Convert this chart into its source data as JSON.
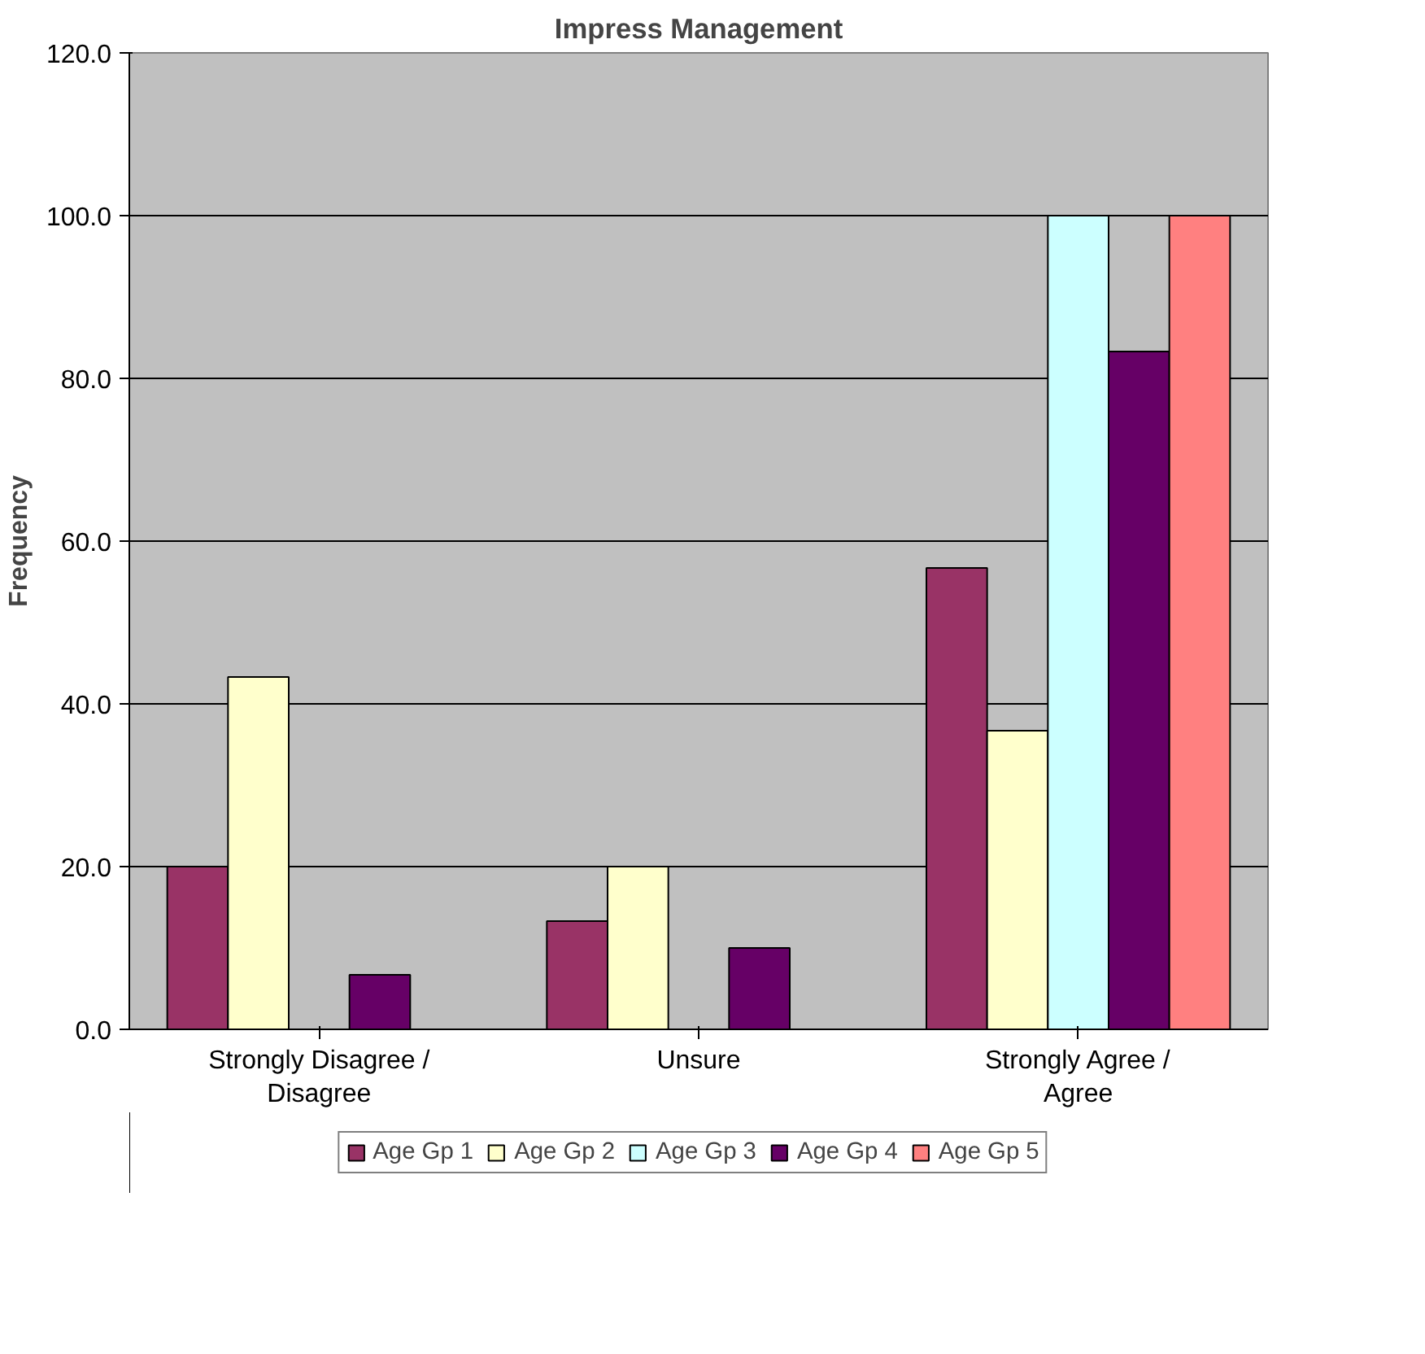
{
  "chart_data": {
    "type": "bar",
    "title": "Impress Management",
    "ylabel": "Frequency",
    "categories": [
      "Strongly Disagree / Disagree",
      "Unsure",
      "Strongly Agree / Agree"
    ],
    "series": [
      {
        "name": "Age Gp 1",
        "color": "#993366",
        "values": [
          20.0,
          13.3,
          56.7
        ]
      },
      {
        "name": "Age Gp 2",
        "color": "#ffffcc",
        "values": [
          43.3,
          20.0,
          36.7
        ]
      },
      {
        "name": "Age Gp 3",
        "color": "#ccffff",
        "values": [
          null,
          null,
          100.0
        ]
      },
      {
        "name": "Age Gp 4",
        "color": "#660066",
        "values": [
          6.7,
          10.0,
          83.3
        ]
      },
      {
        "name": "Age Gp 5",
        "color": "#ff8080",
        "values": [
          null,
          null,
          100.0
        ]
      }
    ],
    "ylim": [
      0,
      120
    ],
    "yticks": [
      {
        "value": 0,
        "label": "0.0"
      },
      {
        "value": 20,
        "label": "20.0"
      },
      {
        "value": 40,
        "label": "40.0"
      },
      {
        "value": 60,
        "label": "60.0"
      },
      {
        "value": 80,
        "label": "80.0"
      },
      {
        "value": 100,
        "label": "100.0"
      },
      {
        "value": 120,
        "label": "120.0"
      }
    ],
    "grid": "y",
    "legend": "bottom"
  }
}
